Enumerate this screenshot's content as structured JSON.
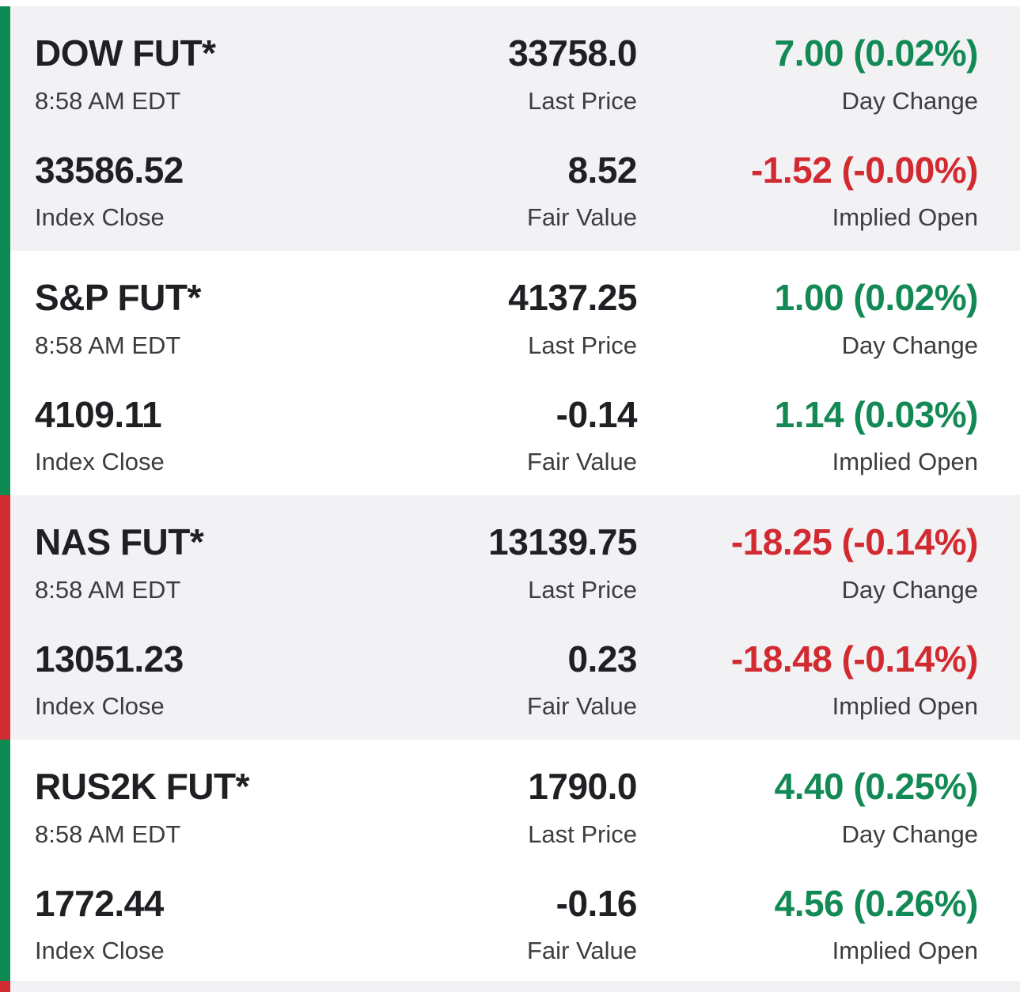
{
  "colors": {
    "positive": "#138a55",
    "negative": "#d12b31",
    "shaded_bg": "#f2f2f5"
  },
  "labels": {
    "last_price": "Last Price",
    "day_change": "Day Change",
    "index_close": "Index Close",
    "fair_value": "Fair Value",
    "implied_open": "Implied Open"
  },
  "futures": [
    {
      "name": "DOW FUT*",
      "time": "8:58 AM EDT",
      "last_price": "33758.0",
      "day_change": "7.00 (0.02%)",
      "day_change_direction": "up",
      "index_close": "33586.52",
      "fair_value": "8.52",
      "implied_open": "-1.52 (-0.00%)",
      "implied_open_direction": "down",
      "edge_direction": "up"
    },
    {
      "name": "S&P FUT*",
      "time": "8:58 AM EDT",
      "last_price": "4137.25",
      "day_change": "1.00 (0.02%)",
      "day_change_direction": "up",
      "index_close": "4109.11",
      "fair_value": "-0.14",
      "implied_open": "1.14 (0.03%)",
      "implied_open_direction": "up",
      "edge_direction": "up"
    },
    {
      "name": "NAS FUT*",
      "time": "8:58 AM EDT",
      "last_price": "13139.75",
      "day_change": "-18.25 (-0.14%)",
      "day_change_direction": "down",
      "index_close": "13051.23",
      "fair_value": "0.23",
      "implied_open": "-18.48 (-0.14%)",
      "implied_open_direction": "down",
      "edge_direction": "down"
    },
    {
      "name": "RUS2K FUT*",
      "time": "8:58 AM EDT",
      "last_price": "1790.0",
      "day_change": "4.40 (0.25%)",
      "day_change_direction": "up",
      "index_close": "1772.44",
      "fair_value": "-0.16",
      "implied_open": "4.56 (0.26%)",
      "implied_open_direction": "up",
      "edge_direction": "up"
    }
  ]
}
